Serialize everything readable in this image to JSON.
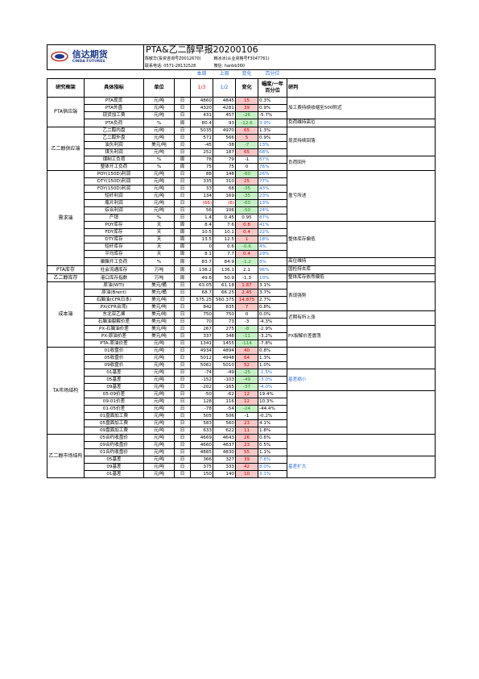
{
  "header": {
    "company_name": "信达期货",
    "company_en": "CINDA FUTURES",
    "title": "PTA&乙二醇早报20200106",
    "analyst1": "陈敏华(投资咨询号Z0012670)",
    "analyst2": "韩冰冰(从业资格号F3047761)",
    "phone": "联系电话: 0571-28132528",
    "wechat": "微信: hanbb360"
  },
  "sub_headers": {
    "today": "本周",
    "last": "上周",
    "change": "变化",
    "pct": "百分位"
  },
  "columns": {
    "category": "研究框架",
    "indicator": "具体指标",
    "unit": "单位",
    "date1": "1/3",
    "date2": "1/2",
    "change": "变化",
    "pct": "幅度/一年百分位",
    "judge": "研判"
  },
  "groups": [
    {
      "name": "PTA供应端",
      "rows": [
        {
          "ind": "PTA现货",
          "unit": "元/吨",
          "freq": "日",
          "v1": "4860",
          "v2": "4845",
          "chg": "15",
          "sign": "pos",
          "pct": "0.3%"
        },
        {
          "ind": "PTA外盘",
          "unit": "元/吨",
          "freq": "日",
          "v1": "4320",
          "v2": "4281",
          "chg": "39",
          "sign": "pos",
          "pct": "0.9%"
        },
        {
          "ind": "现货加工费",
          "unit": "元/吨",
          "freq": "日",
          "v1": "431",
          "v2": "457",
          "chg": "-26",
          "sign": "neg",
          "pct": "-5.7%"
        },
        {
          "ind": "PTA负荷",
          "unit": "%",
          "freq": "周",
          "v1": "80.4",
          "v2": "93",
          "chg": "-12.6",
          "sign": "neg",
          "pct": "3.9%",
          "pctblue": true
        }
      ],
      "judges": [
        {
          "text": "加工费持续收缩至500附近",
          "span": 3
        },
        {
          "text": "负荷维持高位",
          "span": 1
        }
      ]
    },
    {
      "name": "乙二醇供应端",
      "rows": [
        {
          "ind": "乙二醇内盘",
          "unit": "元/吨",
          "freq": "日",
          "v1": "5035",
          "v2": "4970",
          "chg": "65",
          "sign": "pos",
          "pct": "1.3%"
        },
        {
          "ind": "乙二醇外盘",
          "unit": "元/吨",
          "freq": "日",
          "v1": "571",
          "v2": "566",
          "chg": "5",
          "sign": "pos",
          "pct": "0.9%"
        },
        {
          "ind": "油头利润",
          "unit": "美元/吨",
          "freq": "日",
          "v1": "-45",
          "v2": "-38",
          "chg": "-7",
          "sign": "neg",
          "pct": "13%",
          "pctblue": true
        },
        {
          "ind": "煤头利润",
          "unit": "元/吨",
          "freq": "日",
          "v1": "252",
          "v2": "187",
          "chg": "65",
          "sign": "pos",
          "pct": "68%",
          "pctblue": true
        },
        {
          "ind": "煤制工负荷",
          "unit": "%",
          "freq": "周",
          "v1": "78",
          "v2": "79",
          "chg": "-1",
          "sign": "none",
          "pct": "67%",
          "pctblue": true
        },
        {
          "ind": "整体开工负荷",
          "unit": "%",
          "freq": "周",
          "v1": "75",
          "v2": "75",
          "chg": "0",
          "sign": "none",
          "pct": "76%",
          "pctblue": true
        }
      ],
      "judges": [
        {
          "text": "现货持续回落",
          "span": 4
        },
        {
          "text": "负荷回升",
          "span": 2
        }
      ]
    },
    {
      "name": "需求端",
      "rows": [
        {
          "ind": "POY(150D)利润",
          "unit": "元/吨",
          "freq": "日",
          "v1": "88",
          "v2": "148",
          "chg": "-60",
          "sign": "neg",
          "pct": "26%",
          "pctblue": true
        },
        {
          "ind": "DTY(150D)利润",
          "unit": "元/吨",
          "freq": "日",
          "v1": "335",
          "v2": "310",
          "chg": "25",
          "sign": "pos",
          "pct": "77%",
          "pctblue": true
        },
        {
          "ind": "FDY(150D)利润",
          "unit": "元/吨",
          "freq": "日",
          "v1": "33",
          "v2": "68",
          "chg": "-35",
          "sign": "neg",
          "pct": "43%",
          "pctblue": true
        },
        {
          "ind": "短纤利润",
          "unit": "元/吨",
          "freq": "日",
          "v1": "134",
          "v2": "169",
          "chg": "-35",
          "sign": "neg",
          "pct": "23%",
          "pctblue": true
        },
        {
          "ind": "瓶片利润",
          "unit": "元/吨",
          "freq": "日",
          "v1": "(66)",
          "v2": "(6)",
          "chg": "-60",
          "sign": "neg",
          "pct": "13%",
          "pctblue": true,
          "red12": true
        },
        {
          "ind": "综合利润",
          "unit": "元/吨",
          "freq": "日",
          "v1": "56",
          "v2": "106",
          "chg": "-50",
          "sign": "neg",
          "pct": "24%",
          "pctblue": true
        },
        {
          "ind": "产销",
          "unit": "%",
          "freq": "日",
          "v1": "1.4",
          "v2": "0.45",
          "chg": "0.95",
          "sign": "none",
          "pct": "87%",
          "pctblue": true
        },
        {
          "ind": "POY库存",
          "unit": "天",
          "freq": "周",
          "v1": "8.4",
          "v2": "7.6",
          "chg": "0.8",
          "sign": "pos",
          "pct": "41%",
          "pctblue": true
        },
        {
          "ind": "FDY库存",
          "unit": "天",
          "freq": "周",
          "v1": "10.5",
          "v2": "10.1",
          "chg": "0.4",
          "sign": "pos",
          "pct": "22%",
          "pctblue": true
        },
        {
          "ind": "DTY库存",
          "unit": "天",
          "freq": "周",
          "v1": "13.5",
          "v2": "12.5",
          "chg": "1",
          "sign": "pos",
          "pct": "18%",
          "pctblue": true
        },
        {
          "ind": "短纤库存",
          "unit": "天",
          "freq": "周",
          "v1": "0",
          "v2": "0.6",
          "chg": "-0.6",
          "sign": "neg",
          "pct": "4%",
          "pctblue": true
        },
        {
          "ind": "平均库存",
          "unit": "天",
          "freq": "周",
          "v1": "8.1",
          "v2": "7.7",
          "chg": "0.4",
          "sign": "pos",
          "pct": "29%",
          "pctblue": true
        },
        {
          "ind": "聚酯开工负荷",
          "unit": "%",
          "freq": "周",
          "v1": "83.7",
          "v2": "84.9",
          "chg": "-1.2",
          "sign": "neg",
          "pct": "8%",
          "pctblue": true
        }
      ],
      "judges": [
        {
          "text": "盈亏所述",
          "span": 7
        },
        {
          "text": "整体库存偏低",
          "span": 5
        },
        {
          "text": "高位维持",
          "span": 1
        }
      ]
    },
    {
      "name": "PTA库存",
      "rows": [
        {
          "ind": "社会流通库存",
          "unit": "万吨",
          "freq": "周",
          "v1": "138.2",
          "v2": "136.1",
          "chg": "2.1",
          "sign": "none",
          "pct": "96%",
          "pctblue": true
        }
      ],
      "judges": [
        {
          "text": "国检持去库",
          "span": 1
        }
      ]
    },
    {
      "name": "乙二醇库存",
      "rows": [
        {
          "ind": "港口库存指数",
          "unit": "万吨",
          "freq": "周",
          "v1": "49.6",
          "v2": "50.9",
          "chg": "-1.3",
          "sign": "none",
          "pct": "10%",
          "pctblue": true
        }
      ],
      "judges": [
        {
          "text": "整体库存依然偏低",
          "span": 1
        }
      ]
    },
    {
      "name": "成本端",
      "rows": [
        {
          "ind": "原油(WTI)",
          "unit": "美元/桶",
          "freq": "日",
          "v1": "63.05",
          "v2": "61.18",
          "chg": "1.87",
          "sign": "pos",
          "pct": "3.1%"
        },
        {
          "ind": "原油(Brent)",
          "unit": "美元/桶",
          "freq": "日",
          "v1": "68.7",
          "v2": "66.25",
          "chg": "2.45",
          "sign": "pos",
          "pct": "3.7%"
        },
        {
          "ind": "石脑油(CFR日本)",
          "unit": "美元/吨",
          "freq": "日",
          "v1": "575.25",
          "v2": "560.375",
          "chg": "14.875",
          "sign": "pos",
          "pct": "2.7%"
        },
        {
          "ind": "PX(CFR台湾)",
          "unit": "美元/吨",
          "freq": "日",
          "v1": "842",
          "v2": "835",
          "chg": "7",
          "sign": "pos",
          "pct": "0.8%"
        },
        {
          "ind": "东北亚乙烯",
          "unit": "美元/吨",
          "freq": "日",
          "v1": "750",
          "v2": "750",
          "chg": "0",
          "sign": "none",
          "pct": "0.0%"
        },
        {
          "ind": "石脑油裂解价差",
          "unit": "美元/吨",
          "freq": "日",
          "v1": "70",
          "v2": "73",
          "chg": "-3",
          "sign": "none",
          "pct": "-4.3%"
        },
        {
          "ind": "PX-石脑油价差",
          "unit": "美元/吨",
          "freq": "日",
          "v1": "267",
          "v2": "275",
          "chg": "-8",
          "sign": "neg",
          "pct": "-2.9%"
        },
        {
          "ind": "PX-原油价差",
          "unit": "美元/吨",
          "freq": "日",
          "v1": "337",
          "v2": "348",
          "chg": "-11",
          "sign": "neg",
          "pct": "-3.2%"
        },
        {
          "ind": "PTA-原油价差",
          "unit": "元/吨",
          "freq": "日",
          "v1": "1341",
          "v2": "1455",
          "chg": "-114",
          "sign": "neg",
          "pct": "-7.8%"
        }
      ],
      "judges": [
        {
          "text": "表现强势",
          "span": 4
        },
        {
          "text": "近期有所上涨",
          "span": 2
        },
        {
          "text": "PX裂解价差震荡",
          "span": 3
        }
      ]
    },
    {
      "name": "TA市场结构",
      "rows": [
        {
          "ind": "01收盘价",
          "unit": "元/吨",
          "freq": "日",
          "v1": "4934",
          "v2": "4894",
          "chg": "40",
          "sign": "pos",
          "pct": "0.8%"
        },
        {
          "ind": "05收盘价",
          "unit": "元/吨",
          "freq": "日",
          "v1": "5012",
          "v2": "4948",
          "chg": "64",
          "sign": "pos",
          "pct": "1.3%"
        },
        {
          "ind": "09收盘价",
          "unit": "元/吨",
          "freq": "日",
          "v1": "5062",
          "v2": "5010",
          "chg": "52",
          "sign": "pos",
          "pct": "1.0%"
        },
        {
          "ind": "01基差",
          "unit": "元/吨",
          "freq": "日",
          "v1": "-74",
          "v2": "-49",
          "chg": "-25",
          "sign": "neg",
          "pct": "-1.5%",
          "pctblue": true
        },
        {
          "ind": "05基差",
          "unit": "元/吨",
          "freq": "日",
          "v1": "-152",
          "v2": "-103",
          "chg": "-49",
          "sign": "neg",
          "pct": "-3.0%",
          "pctblue": true
        },
        {
          "ind": "09基差",
          "unit": "元/吨",
          "freq": "日",
          "v1": "-202",
          "v2": "-165",
          "chg": "-37",
          "sign": "neg",
          "pct": "-4.0%",
          "pctblue": true
        },
        {
          "ind": "05-09价差",
          "unit": "元/吨",
          "freq": "日",
          "v1": "-50",
          "v2": "-62",
          "chg": "12",
          "sign": "pos",
          "pct": "19.4%"
        },
        {
          "ind": "09-01价差",
          "unit": "元/吨",
          "freq": "日",
          "v1": "128",
          "v2": "116",
          "chg": "12",
          "sign": "pos",
          "pct": "10.3%"
        },
        {
          "ind": "01-05价差",
          "unit": "元/吨",
          "freq": "日",
          "v1": "-78",
          "v2": "-54",
          "chg": "-24",
          "sign": "neg",
          "pct": "-44.4%"
        },
        {
          "ind": "01盘面加工费",
          "unit": "元/吨",
          "freq": "日",
          "v1": "505",
          "v2": "506",
          "chg": "-1",
          "sign": "none",
          "pct": "-0.2%"
        },
        {
          "ind": "05盘面加工费",
          "unit": "元/吨",
          "freq": "日",
          "v1": "583",
          "v2": "560",
          "chg": "23",
          "sign": "pos",
          "pct": "4.1%"
        },
        {
          "ind": "09盘面加工费",
          "unit": "元/吨",
          "freq": "日",
          "v1": "633",
          "v2": "622",
          "chg": "11",
          "sign": "pos",
          "pct": "1.8%"
        }
      ],
      "judges": [
        {
          "text": "",
          "span": 3
        },
        {
          "text": "基差缩小",
          "span": 3,
          "blue": true
        },
        {
          "text": "",
          "span": 6
        }
      ]
    },
    {
      "name": "乙二醇市场结构",
      "rows": [
        {
          "ind": "05合约收盘价",
          "unit": "元/吨",
          "freq": "日",
          "v1": "4669",
          "v2": "4643",
          "chg": "26",
          "sign": "pos",
          "pct": "0.6%"
        },
        {
          "ind": "09合约收盘价",
          "unit": "元/吨",
          "freq": "日",
          "v1": "4660",
          "v2": "4637",
          "chg": "23",
          "sign": "pos",
          "pct": "0.5%"
        },
        {
          "ind": "01合约收盘价",
          "unit": "元/吨",
          "freq": "日",
          "v1": "4885",
          "v2": "4830",
          "chg": "55",
          "sign": "pos",
          "pct": "1.1%"
        },
        {
          "ind": "05基差",
          "unit": "元/吨",
          "freq": "日",
          "v1": "366",
          "v2": "327",
          "chg": "39",
          "sign": "pos",
          "pct": "7.8%",
          "pctblue": true
        },
        {
          "ind": "09基差",
          "unit": "元/吨",
          "freq": "日",
          "v1": "375",
          "v2": "333",
          "chg": "42",
          "sign": "pos",
          "pct": "8.0%",
          "pctblue": true
        },
        {
          "ind": "01基差",
          "unit": "元/吨",
          "freq": "日",
          "v1": "150",
          "v2": "140",
          "chg": "10",
          "sign": "pos",
          "pct": "3.1%",
          "pctblue": true
        }
      ],
      "judges": [
        {
          "text": "",
          "span": 3
        },
        {
          "text": "基差扩大",
          "span": 3,
          "blue": true
        }
      ]
    }
  ]
}
